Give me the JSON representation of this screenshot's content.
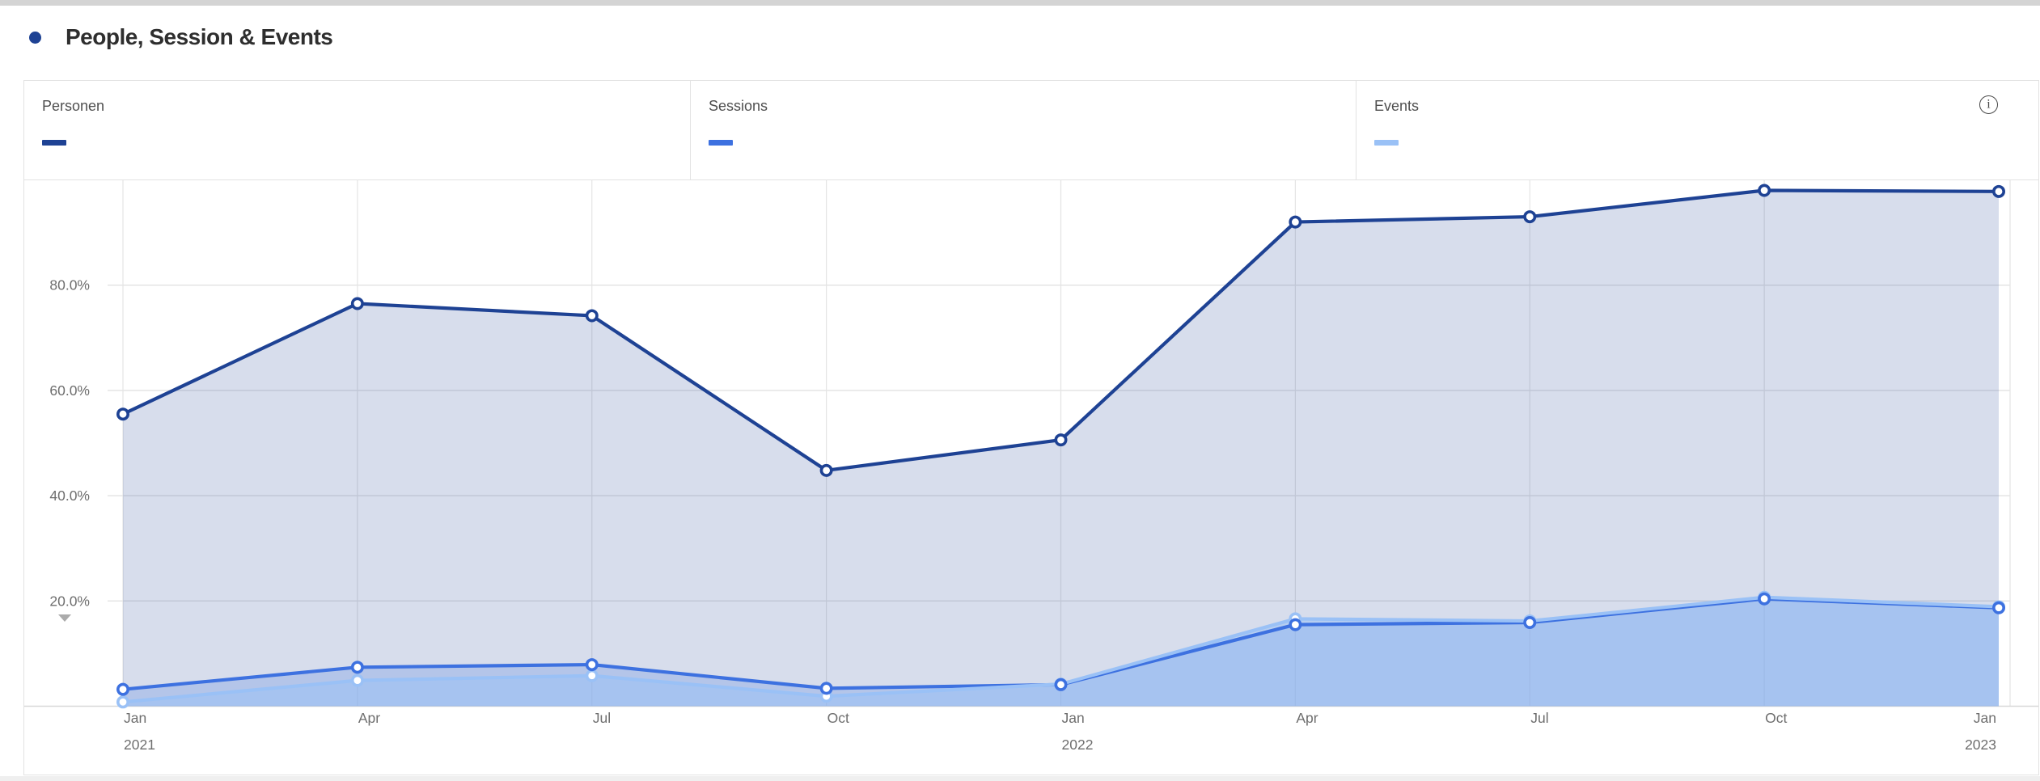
{
  "page": {
    "title": "People, Session & Events"
  },
  "legend": {
    "items": [
      {
        "id": "personen",
        "label": "Personen",
        "color": "#1e4294"
      },
      {
        "id": "sessions",
        "label": "Sessions",
        "color": "#3d71e0"
      },
      {
        "id": "events",
        "label": "Events",
        "color": "#9ac1f6"
      }
    ],
    "info_icon": "info-circle"
  },
  "chart_data": {
    "type": "area",
    "title": "People, Session & Events",
    "x_labels": [
      "Jan",
      "Apr",
      "Jul",
      "Oct",
      "Jan",
      "Apr",
      "Jul",
      "Oct",
      "Jan"
    ],
    "x_year_labels": [
      {
        "index": 0,
        "label": "2021"
      },
      {
        "index": 4,
        "label": "2022"
      },
      {
        "index": 8,
        "label": "2023"
      }
    ],
    "y_ticks": [
      {
        "value": 20,
        "label": "20.0%"
      },
      {
        "value": 40,
        "label": "40.0%"
      },
      {
        "value": 60,
        "label": "60.0%"
      },
      {
        "value": 80,
        "label": "80.0%"
      }
    ],
    "ylim": [
      0,
      100
    ],
    "grid": true,
    "legend_position": "top",
    "series": [
      {
        "name": "Personen",
        "color": "#1e4294",
        "fill": "rgba(31,67,148,0.18)",
        "values": [
          55.5,
          76.5,
          74.2,
          44.8,
          50.6,
          92.0,
          93.0,
          98.0,
          97.8
        ]
      },
      {
        "name": "Sessions",
        "color": "#3d71e0",
        "fill": "rgba(61,113,224,0.22)",
        "values": [
          3.2,
          7.4,
          7.9,
          3.4,
          4.1,
          15.5,
          15.9,
          20.4,
          18.7
        ]
      },
      {
        "name": "Events",
        "color": "#9ac1f6",
        "fill": "rgba(154,193,246,0.55)",
        "values": [
          0.8,
          4.9,
          5.8,
          1.9,
          4.2,
          16.6,
          16.2,
          20.7,
          18.9
        ]
      }
    ]
  }
}
